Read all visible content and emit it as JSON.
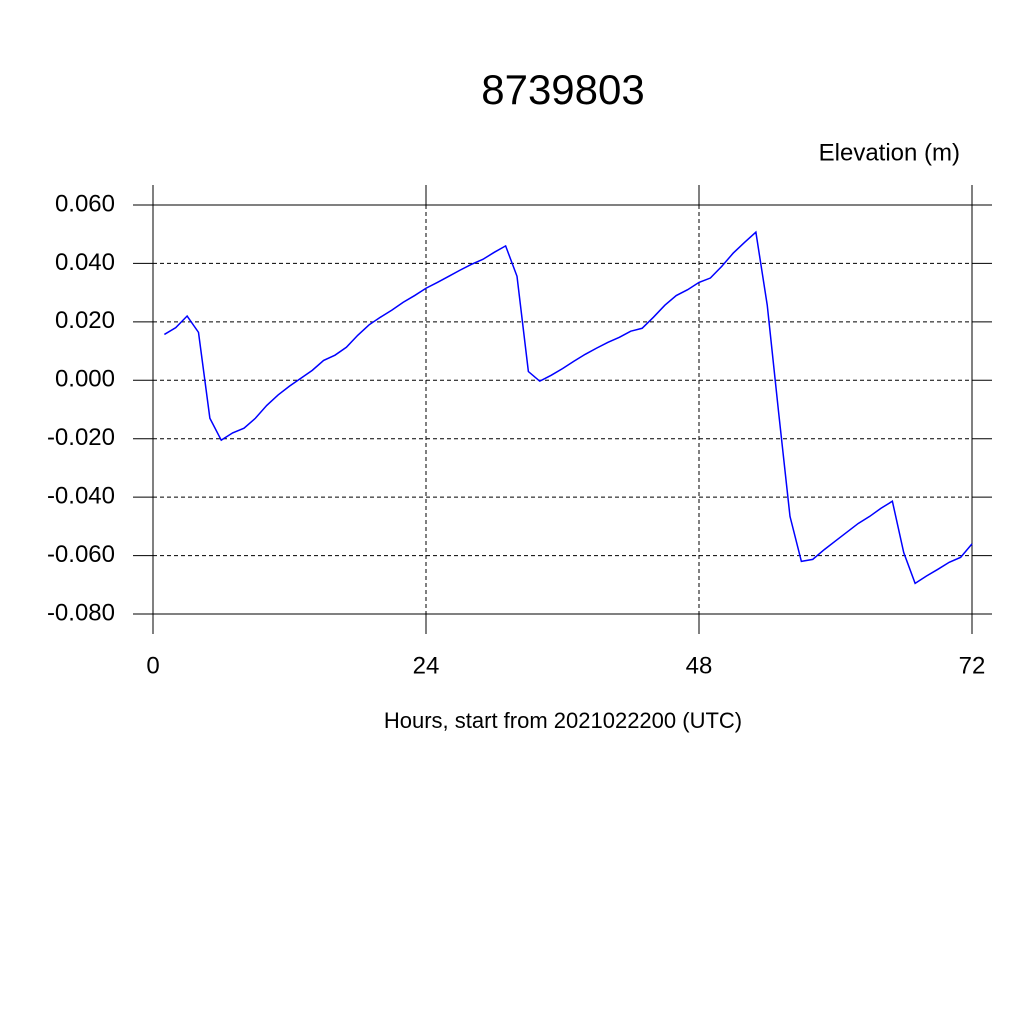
{
  "chart_data": {
    "type": "line",
    "title": "8739803",
    "ylabel": "Elevation (m)",
    "xlabel": "Hours, start from 2021022200 (UTC)",
    "xlim": [
      0,
      72
    ],
    "xticks": [
      0,
      24,
      48,
      72
    ],
    "ylim": [
      -0.08,
      0.06
    ],
    "yticks": [
      {
        "value": -0.08,
        "label": "-0.080"
      },
      {
        "value": -0.06,
        "label": "-0.060"
      },
      {
        "value": -0.04,
        "label": "-0.040"
      },
      {
        "value": -0.02,
        "label": "-0.020"
      },
      {
        "value": 0,
        "label": "0.000"
      },
      {
        "value": 0.02,
        "label": "0.020"
      },
      {
        "value": 0.04,
        "label": "0.040"
      },
      {
        "value": 0.06,
        "label": "0.060"
      }
    ],
    "grid": true,
    "x": [
      1,
      2,
      3,
      4,
      5,
      6,
      7,
      8,
      9,
      10,
      11,
      12,
      13,
      14,
      15,
      16,
      17,
      18,
      19,
      20,
      21,
      22,
      23,
      24,
      25,
      26,
      27,
      28,
      29,
      30,
      31,
      32,
      33,
      34,
      35,
      36,
      37,
      38,
      39,
      40,
      41,
      42,
      43,
      44,
      45,
      46,
      47,
      48,
      49,
      50,
      51,
      52,
      53,
      54,
      55,
      56,
      57,
      58,
      59,
      60,
      61,
      62,
      63,
      64,
      65,
      66,
      67,
      68,
      69,
      70,
      71,
      72
    ],
    "series": [
      {
        "color": "#0000ff",
        "values": [
          0.0157,
          0.018,
          0.022,
          0.0164,
          -0.013,
          -0.0205,
          -0.018,
          -0.0164,
          -0.013,
          -0.0086,
          -0.005,
          -0.002,
          0.0007,
          0.0034,
          0.0068,
          0.0086,
          0.0113,
          0.0154,
          0.019,
          0.0216,
          0.024,
          0.0267,
          0.029,
          0.0315,
          0.0335,
          0.0356,
          0.0377,
          0.0397,
          0.0414,
          0.0438,
          0.046,
          0.0356,
          0.003,
          -0.0003,
          0.0017,
          0.004,
          0.0065,
          0.0089,
          0.011,
          0.013,
          0.0147,
          0.0168,
          0.0178,
          0.0216,
          0.0257,
          0.029,
          0.031,
          0.0335,
          0.035,
          0.039,
          0.0435,
          0.0472,
          0.0507,
          0.0257,
          -0.011,
          -0.0466,
          -0.062,
          -0.0613,
          -0.058,
          -0.055,
          -0.052,
          -0.049,
          -0.0466,
          -0.0438,
          -0.0414,
          -0.059,
          -0.0695,
          -0.067,
          -0.0647,
          -0.0623,
          -0.0606,
          -0.056
        ]
      }
    ]
  }
}
